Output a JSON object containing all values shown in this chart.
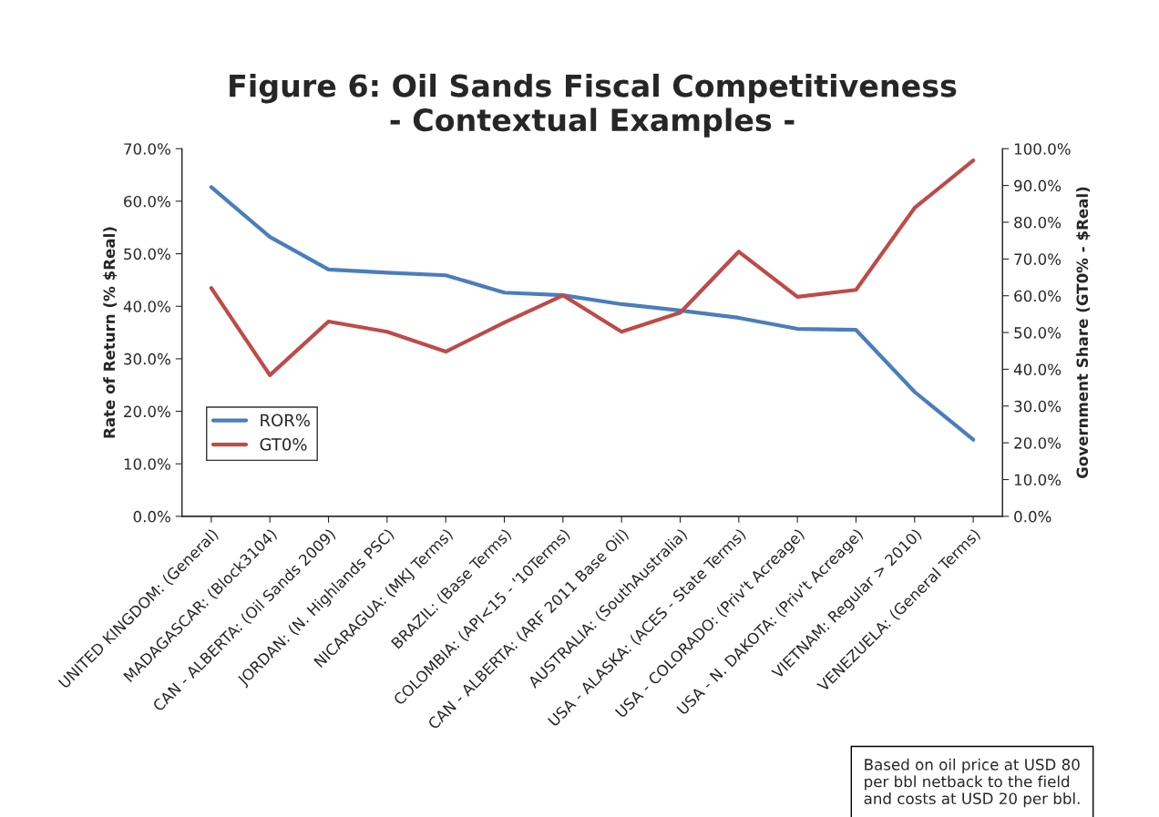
{
  "chart_data": {
    "type": "line",
    "title": "Figure 6: Oil Sands Fiscal Competitiveness\n- Contextual Examples -",
    "ylabel": "Rate of Return (% $Real)",
    "y2label": "Government Share (GT0% - $Real)",
    "categories": [
      "UNITED KINGDOM: (General)",
      "MADAGASCAR: (Block3104)",
      "CAN - ALBERTA: (Oil Sands 2009)",
      "JORDAN: (N. Highlands PSC)",
      "NICARAGUA: (MKJ Terms)",
      "BRAZIL: (Base Terms)",
      "COLOMBIA: (API<15 - '10Terms)",
      "CAN - ALBERTA: (ARF 2011 Base Oil)",
      "AUSTRALIA: (SouthAustralia)",
      "USA - ALASKA: (ACES - State Terms)",
      "USA - COLORADO: (Priv't Acreage)",
      "USA - N. DAKOTA: (Priv't Acreage)",
      "VIETNAM: Regular > 2010)",
      "VENEZUELA: (General Terms)"
    ],
    "series": [
      {
        "name": "ROR%",
        "color": "#4a7ebb",
        "values": [
          62.7,
          53.2,
          47.0,
          46.4,
          45.9,
          42.6,
          42.1,
          40.4,
          39.2,
          37.8,
          35.7,
          35.5,
          23.7,
          14.6
        ]
      },
      {
        "name": "GT0%",
        "color": "#be4b48",
        "axis": "y2",
        "values": [
          62.1,
          38.4,
          53.0,
          50.2,
          44.8,
          52.7,
          60.1,
          50.2,
          55.4,
          72.0,
          59.7,
          61.6,
          83.9,
          96.8
        ]
      }
    ],
    "ylim": [
      0,
      70
    ],
    "yticks": [
      {
        "value": 0,
        "label": "0.0%"
      },
      {
        "value": 10,
        "label": "10.0%"
      },
      {
        "value": 20,
        "label": "20.0%"
      },
      {
        "value": 30,
        "label": "30.0%"
      },
      {
        "value": 40,
        "label": "40.0%"
      },
      {
        "value": 50,
        "label": "50.0%"
      },
      {
        "value": 60,
        "label": "60.0%"
      },
      {
        "value": 70,
        "label": "70.0%"
      }
    ],
    "y2lim": [
      0,
      100
    ],
    "y2ticks": [
      {
        "value": 0,
        "label": "0.0%"
      },
      {
        "value": 10,
        "label": "10.0%"
      },
      {
        "value": 20,
        "label": "20.0%"
      },
      {
        "value": 30,
        "label": "30.0%"
      },
      {
        "value": 40,
        "label": "40.0%"
      },
      {
        "value": 50,
        "label": "50.0%"
      },
      {
        "value": 60,
        "label": "60.0%"
      },
      {
        "value": 70,
        "label": "70.0%"
      },
      {
        "value": 80,
        "label": "80.0%"
      },
      {
        "value": 90,
        "label": "90.0%"
      },
      {
        "value": 100,
        "label": "100.0%"
      }
    ],
    "grid": false,
    "legend": "lower left",
    "marker": "none",
    "line_style": "solid",
    "annotations": [
      "Based on oil price at USD 80\nper bbl netback to the field\nand costs at USD 20 per bbl."
    ]
  }
}
